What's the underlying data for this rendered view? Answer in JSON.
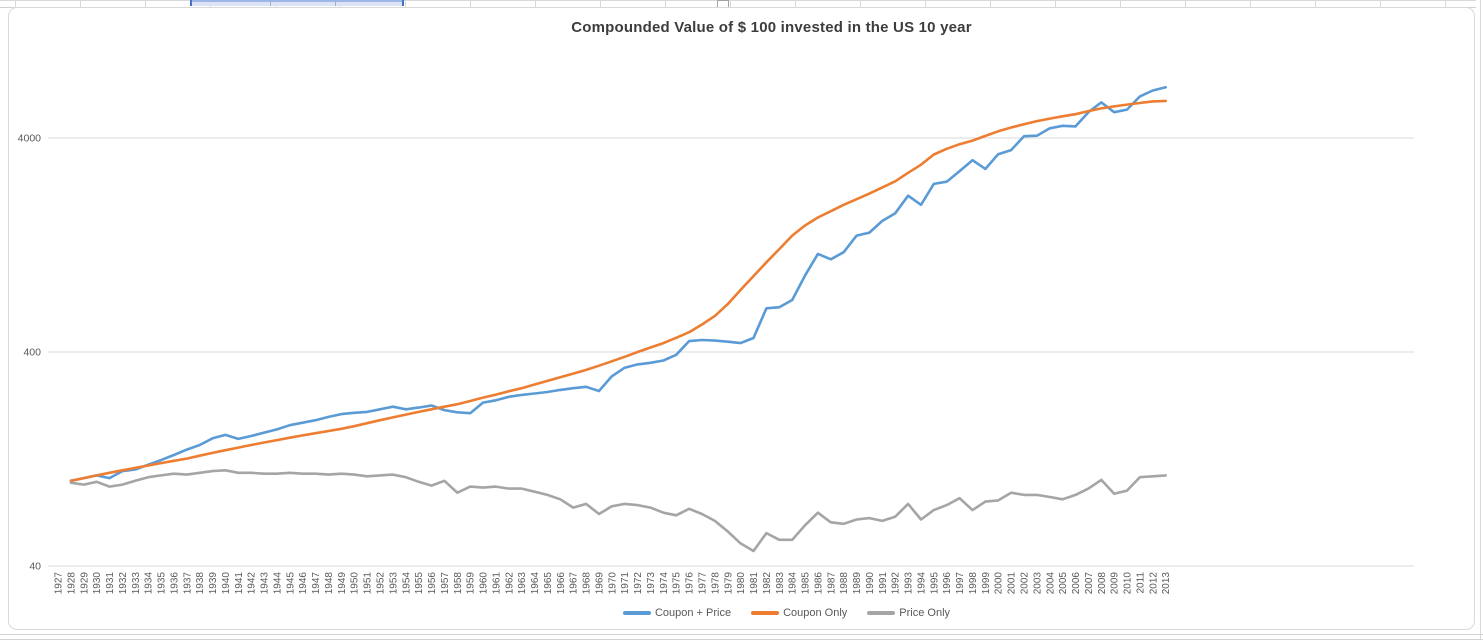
{
  "chart_data": {
    "type": "line",
    "title": "Compounded Value of $ 100 invested in the US 10 year",
    "xlabel": "",
    "ylabel": "",
    "grid": "horizontal-only",
    "legend_position": "bottom-center",
    "y_axis": {
      "scale": "log10",
      "ticks": [
        40,
        400,
        4000
      ],
      "tick_labels": [
        "40",
        "400",
        "4000"
      ],
      "min": 40,
      "max": 9000
    },
    "categories": [
      "1927",
      "1928",
      "1929",
      "1930",
      "1931",
      "1932",
      "1933",
      "1934",
      "1935",
      "1936",
      "1937",
      "1938",
      "1939",
      "1940",
      "1941",
      "1942",
      "1943",
      "1944",
      "1945",
      "1946",
      "1947",
      "1948",
      "1949",
      "1950",
      "1951",
      "1952",
      "1953",
      "1954",
      "1955",
      "1956",
      "1957",
      "1958",
      "1959",
      "1960",
      "1961",
      "1962",
      "1963",
      "1964",
      "1965",
      "1966",
      "1967",
      "1968",
      "1969",
      "1970",
      "1971",
      "1972",
      "1973",
      "1974",
      "1975",
      "1976",
      "1977",
      "1978",
      "1979",
      "1980",
      "1981",
      "1982",
      "1983",
      "1984",
      "1985",
      "1986",
      "1987",
      "1988",
      "1989",
      "1990",
      "1991",
      "1992",
      "1993",
      "1994",
      "1995",
      "1996",
      "1997",
      "1998",
      "1999",
      "2000",
      "2001",
      "2002",
      "2003",
      "2004",
      "2005",
      "2006",
      "2007",
      "2008",
      "2009",
      "2010",
      "2011",
      "2012",
      "2013"
    ],
    "values_start_year": 1928,
    "series": [
      {
        "name": "Coupon + Price",
        "color": "#5B9BD5",
        "values": [
          100,
          103,
          106,
          103,
          111,
          113,
          119,
          125,
          132,
          140,
          147,
          158,
          164,
          157,
          162,
          168,
          174,
          182,
          187,
          192,
          199,
          205,
          208,
          210,
          216,
          222,
          216,
          220,
          225,
          214,
          209,
          207,
          232,
          238,
          247,
          252,
          256,
          260,
          266,
          271,
          275,
          263,
          308,
          338,
          350,
          356,
          365,
          388,
          450,
          455,
          452,
          447,
          440,
          465,
          640,
          648,
          700,
          910,
          1150,
          1085,
          1170,
          1400,
          1445,
          1640,
          1780,
          2150,
          1950,
          2440,
          2500,
          2800,
          3150,
          2870,
          3360,
          3510,
          4080,
          4100,
          4440,
          4560,
          4530,
          5280,
          5870,
          5280,
          5430,
          6260,
          6670,
          6900
        ]
      },
      {
        "name": "Coupon Only",
        "color": "#ED7D31",
        "values": [
          100,
          103,
          106,
          109,
          112,
          115,
          118,
          121,
          124,
          127,
          131,
          135,
          139,
          143,
          147,
          151,
          155,
          159,
          163,
          167,
          171,
          175,
          180,
          186,
          192,
          198,
          204,
          210,
          216,
          222,
          228,
          236,
          245,
          253,
          262,
          271,
          282,
          293,
          305,
          317,
          330,
          345,
          362,
          380,
          400,
          420,
          440,
          466,
          495,
          538,
          590,
          670,
          780,
          905,
          1050,
          1210,
          1400,
          1560,
          1700,
          1820,
          1950,
          2070,
          2200,
          2350,
          2510,
          2750,
          3000,
          3350,
          3560,
          3740,
          3890,
          4090,
          4300,
          4480,
          4640,
          4800,
          4930,
          5050,
          5170,
          5340,
          5500,
          5620,
          5730,
          5830,
          5930,
          5960
        ]
      },
      {
        "name": "Price Only",
        "color": "#A5A5A5",
        "values": [
          98,
          96,
          99,
          94,
          96,
          100,
          104,
          106,
          108,
          107,
          109,
          111,
          112,
          109,
          109,
          108,
          108,
          109,
          108,
          108,
          107,
          108,
          107,
          105,
          106,
          107,
          104,
          99,
          95,
          100,
          88,
          94,
          93,
          94,
          92,
          92,
          89,
          86,
          82,
          75,
          78,
          70,
          76,
          78,
          77,
          75,
          71,
          69,
          74,
          70,
          65,
          58,
          51,
          47,
          57,
          53,
          53,
          62,
          71,
          64,
          63,
          66,
          67,
          65,
          68,
          78,
          66,
          73,
          77,
          83,
          73,
          80,
          81,
          88,
          86,
          86,
          84,
          82,
          86,
          92,
          101,
          87,
          90,
          104,
          105,
          106
        ]
      }
    ]
  },
  "legend": {
    "items": [
      {
        "label": "Coupon + Price"
      },
      {
        "label": "Coupon Only"
      },
      {
        "label": "Price Only"
      }
    ]
  },
  "theme": {
    "gridline_color": "#d9d9d9",
    "axis_line_color": "#d9d9d9",
    "tick_label_color": "#595959",
    "title_color": "#3d3d3d",
    "selection_color": "#4472c4"
  }
}
